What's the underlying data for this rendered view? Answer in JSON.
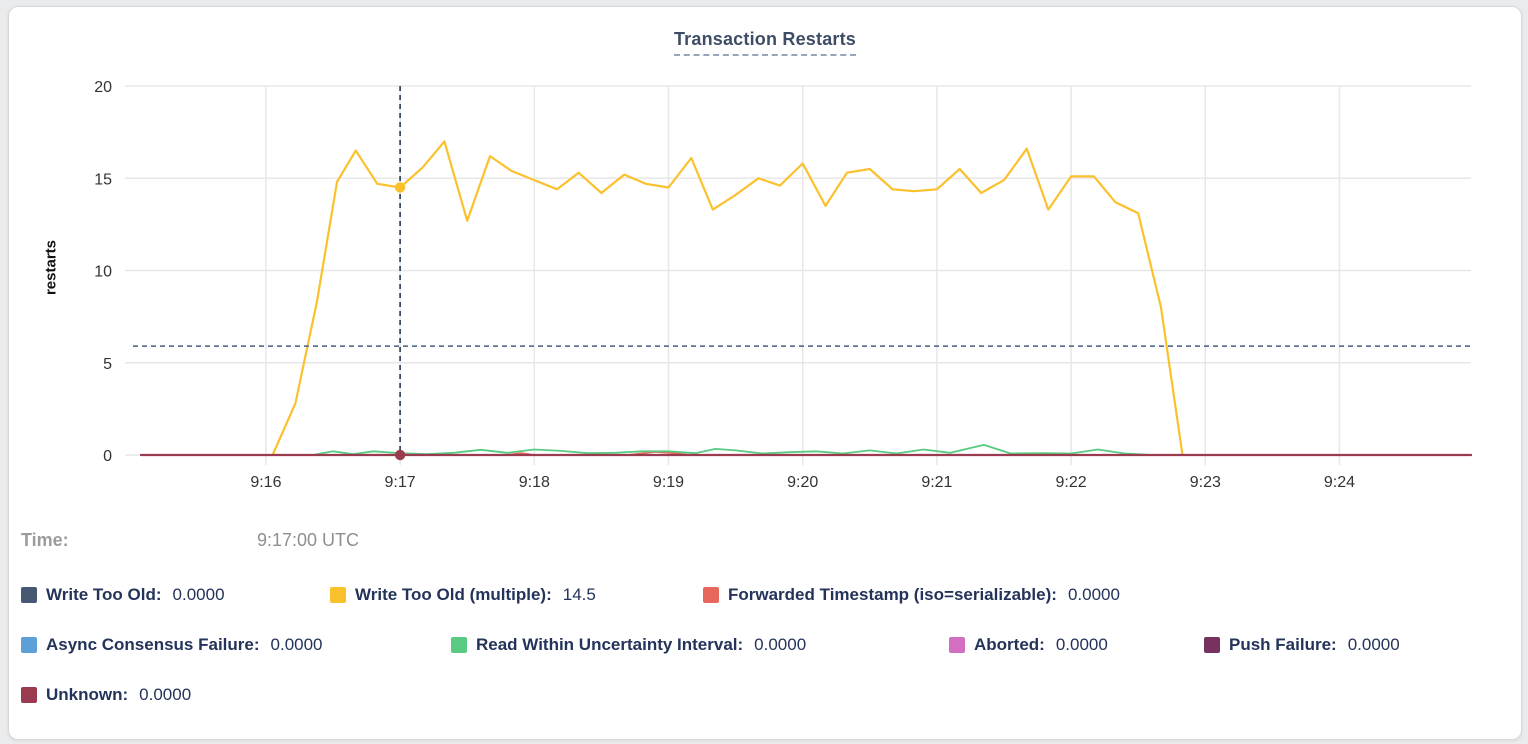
{
  "header": {
    "title": "Transaction Restarts"
  },
  "hover_readout": {
    "time_label": "Time:",
    "time_value": "9:17:00 UTC"
  },
  "legend": {
    "position": "bottom",
    "items": [
      {
        "label": "Write Too Old:",
        "value": "0.0000",
        "color": "#475872"
      },
      {
        "label": "Write Too Old (multiple):",
        "value": "14.5",
        "color": "#FBC12D"
      },
      {
        "label": "Forwarded Timestamp (iso=serializable):",
        "value": "0.0000",
        "color": "#E8675C"
      },
      {
        "label": "Async Consensus Failure:",
        "value": "0.0000",
        "color": "#5C9FD9"
      },
      {
        "label": "Read Within Uncertainty Interval:",
        "value": "0.0000",
        "color": "#58CA81"
      },
      {
        "label": "Aborted:",
        "value": "0.0000",
        "color": "#D36FC0"
      },
      {
        "label": "Push Failure:",
        "value": "0.0000",
        "color": "#77325F"
      },
      {
        "label": "Unknown:",
        "value": "0.0000",
        "color": "#9A3B50"
      }
    ]
  },
  "chart_data": {
    "type": "line",
    "title": "Transaction Restarts",
    "xlabel": "",
    "ylabel": "restarts",
    "ylim": [
      0,
      20
    ],
    "y_ticks": [
      0,
      5,
      10,
      15,
      20
    ],
    "x_domain_minutes": [
      14.95,
      24.98
    ],
    "x_ticks": [
      {
        "t": 16,
        "label": "9:16"
      },
      {
        "t": 17,
        "label": "9:17"
      },
      {
        "t": 18,
        "label": "9:18"
      },
      {
        "t": 19,
        "label": "9:19"
      },
      {
        "t": 20,
        "label": "9:20"
      },
      {
        "t": 21,
        "label": "9:21"
      },
      {
        "t": 22,
        "label": "9:22"
      },
      {
        "t": 23,
        "label": "9:23"
      },
      {
        "t": 24,
        "label": "9:24"
      }
    ],
    "grid": true,
    "colors": {
      "gridline": "#e7e7e7",
      "crosshair_vertical": "#3d4d63",
      "crosshair_horizontal": "#5d7493",
      "tick_text": "#333333"
    },
    "crosshair": {
      "t": 17,
      "time_label": "9:17:00 UTC",
      "h_value": 5.9,
      "points": [
        {
          "series": "Write Too Old (multiple)",
          "v": 14.5,
          "color": "#FBC12D"
        },
        {
          "series": "Unknown",
          "v": 0,
          "color": "#9A3B50"
        }
      ]
    },
    "series": [
      {
        "name": "Write Too Old",
        "color": "#475872",
        "width": 2,
        "values": [
          [
            15.07,
            0
          ],
          [
            24.98,
            0
          ]
        ]
      },
      {
        "name": "Async Consensus Failure",
        "color": "#5C9FD9",
        "width": 2,
        "values": [
          [
            15.07,
            0
          ],
          [
            24.98,
            0
          ]
        ]
      },
      {
        "name": "Aborted",
        "color": "#D36FC0",
        "width": 2,
        "values": [
          [
            15.07,
            0
          ],
          [
            24.98,
            0
          ]
        ]
      },
      {
        "name": "Push Failure",
        "color": "#77325F",
        "width": 2,
        "values": [
          [
            15.07,
            0
          ],
          [
            24.98,
            0
          ]
        ]
      },
      {
        "name": "Forwarded Timestamp (iso=serializable)",
        "color": "#E8675C",
        "width": 1.8,
        "values": [
          [
            16.05,
            0
          ],
          [
            17.8,
            0
          ],
          [
            17.9,
            0.1
          ],
          [
            18.0,
            0
          ],
          [
            18.7,
            0
          ],
          [
            18.9,
            0.17
          ],
          [
            19.05,
            0.1
          ],
          [
            19.15,
            0
          ],
          [
            22.83,
            0
          ]
        ]
      },
      {
        "name": "Read Within Uncertainty Interval",
        "color": "#58CA81",
        "width": 1.8,
        "values": [
          [
            16.35,
            0
          ],
          [
            16.5,
            0.2
          ],
          [
            16.65,
            0.05
          ],
          [
            16.8,
            0.2
          ],
          [
            17.0,
            0.1
          ],
          [
            17.2,
            0.05
          ],
          [
            17.4,
            0.12
          ],
          [
            17.6,
            0.28
          ],
          [
            17.8,
            0.12
          ],
          [
            18.0,
            0.3
          ],
          [
            18.2,
            0.22
          ],
          [
            18.4,
            0.1
          ],
          [
            18.6,
            0.12
          ],
          [
            18.8,
            0.2
          ],
          [
            19.0,
            0.2
          ],
          [
            19.2,
            0.1
          ],
          [
            19.35,
            0.33
          ],
          [
            19.5,
            0.25
          ],
          [
            19.7,
            0.08
          ],
          [
            19.9,
            0.15
          ],
          [
            20.1,
            0.2
          ],
          [
            20.3,
            0.08
          ],
          [
            20.5,
            0.25
          ],
          [
            20.7,
            0.08
          ],
          [
            20.9,
            0.3
          ],
          [
            21.1,
            0.12
          ],
          [
            21.35,
            0.55
          ],
          [
            21.55,
            0.08
          ],
          [
            21.8,
            0.1
          ],
          [
            22.0,
            0.08
          ],
          [
            22.2,
            0.3
          ],
          [
            22.4,
            0.08
          ],
          [
            22.6,
            0
          ]
        ]
      },
      {
        "name": "Write Too Old (multiple)",
        "color": "#FBC12D",
        "width": 2.2,
        "values": [
          [
            16.05,
            0
          ],
          [
            16.22,
            2.8
          ],
          [
            16.38,
            8.3
          ],
          [
            16.53,
            14.8
          ],
          [
            16.67,
            16.5
          ],
          [
            16.83,
            14.7
          ],
          [
            17.0,
            14.5
          ],
          [
            17.17,
            15.6
          ],
          [
            17.33,
            17.0
          ],
          [
            17.5,
            12.7
          ],
          [
            17.67,
            16.2
          ],
          [
            17.83,
            15.4
          ],
          [
            18.0,
            14.9
          ],
          [
            18.17,
            14.4
          ],
          [
            18.33,
            15.3
          ],
          [
            18.5,
            14.2
          ],
          [
            18.67,
            15.2
          ],
          [
            18.83,
            14.7
          ],
          [
            19.0,
            14.5
          ],
          [
            19.17,
            16.1
          ],
          [
            19.33,
            13.3
          ],
          [
            19.5,
            14.1
          ],
          [
            19.67,
            15.0
          ],
          [
            19.83,
            14.6
          ],
          [
            20.0,
            15.8
          ],
          [
            20.17,
            13.5
          ],
          [
            20.33,
            15.3
          ],
          [
            20.5,
            15.5
          ],
          [
            20.67,
            14.4
          ],
          [
            20.83,
            14.3
          ],
          [
            21.0,
            14.4
          ],
          [
            21.17,
            15.5
          ],
          [
            21.33,
            14.2
          ],
          [
            21.5,
            14.9
          ],
          [
            21.67,
            16.6
          ],
          [
            21.83,
            13.3
          ],
          [
            22.0,
            15.1
          ],
          [
            22.17,
            15.1
          ],
          [
            22.33,
            13.7
          ],
          [
            22.5,
            13.1
          ],
          [
            22.67,
            8.0
          ],
          [
            22.83,
            0
          ]
        ]
      },
      {
        "name": "Unknown",
        "color": "#9A3B50",
        "width": 2.2,
        "values": [
          [
            15.07,
            0
          ],
          [
            24.98,
            0
          ]
        ]
      }
    ]
  }
}
